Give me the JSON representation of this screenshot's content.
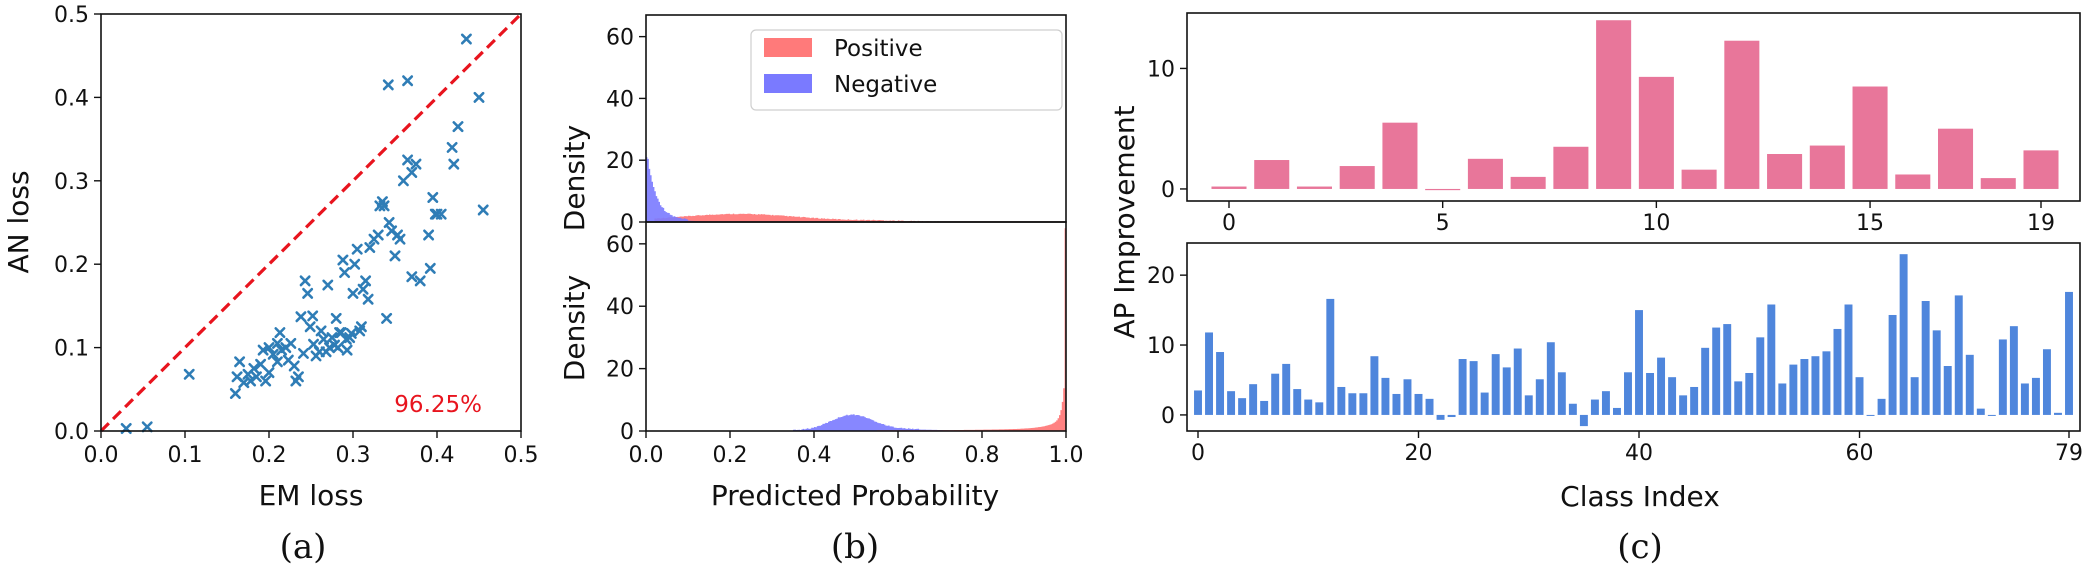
{
  "colors": {
    "scatter": "#2f7db6",
    "diagonal": "#e8141e",
    "positive": "#ff7a7a",
    "negative": "#7a7aff",
    "bars_top": "#e8769a",
    "bars_bottom": "#4f86dc",
    "annotation": "#e8141e"
  },
  "chart_data": [
    {
      "type": "scatter",
      "caption": "(a)",
      "xlabel": "EM loss",
      "ylabel": "AN loss",
      "xlim": [
        0,
        0.5
      ],
      "ylim": [
        0,
        0.5
      ],
      "xticks": [
        "0.0",
        "0.1",
        "0.2",
        "0.3",
        "0.4",
        "0.5"
      ],
      "yticks": [
        "0.0",
        "0.1",
        "0.2",
        "0.3",
        "0.4",
        "0.5"
      ],
      "annotation": "96.25%",
      "reference_line": "y = x (dashed)",
      "points": [
        [
          0.03,
          0.003
        ],
        [
          0.055,
          0.005
        ],
        [
          0.105,
          0.068
        ],
        [
          0.16,
          0.045
        ],
        [
          0.162,
          0.065
        ],
        [
          0.165,
          0.083
        ],
        [
          0.17,
          0.058
        ],
        [
          0.175,
          0.068
        ],
        [
          0.178,
          0.06
        ],
        [
          0.182,
          0.075
        ],
        [
          0.185,
          0.065
        ],
        [
          0.19,
          0.08
        ],
        [
          0.193,
          0.097
        ],
        [
          0.196,
          0.06
        ],
        [
          0.2,
          0.07
        ],
        [
          0.2,
          0.1
        ],
        [
          0.205,
          0.092
        ],
        [
          0.21,
          0.105
        ],
        [
          0.21,
          0.083
        ],
        [
          0.213,
          0.118
        ],
        [
          0.215,
          0.097
        ],
        [
          0.22,
          0.1
        ],
        [
          0.223,
          0.085
        ],
        [
          0.226,
          0.105
        ],
        [
          0.23,
          0.078
        ],
        [
          0.232,
          0.06
        ],
        [
          0.235,
          0.065
        ],
        [
          0.238,
          0.137
        ],
        [
          0.241,
          0.093
        ],
        [
          0.243,
          0.18
        ],
        [
          0.246,
          0.165
        ],
        [
          0.249,
          0.125
        ],
        [
          0.252,
          0.138
        ],
        [
          0.253,
          0.104
        ],
        [
          0.256,
          0.09
        ],
        [
          0.26,
          0.095
        ],
        [
          0.262,
          0.12
        ],
        [
          0.265,
          0.11
        ],
        [
          0.268,
          0.095
        ],
        [
          0.27,
          0.175
        ],
        [
          0.272,
          0.1
        ],
        [
          0.275,
          0.112
        ],
        [
          0.278,
          0.103
        ],
        [
          0.28,
          0.135
        ],
        [
          0.282,
          0.1
        ],
        [
          0.284,
          0.118
        ],
        [
          0.286,
          0.118
        ],
        [
          0.288,
          0.205
        ],
        [
          0.29,
          0.19
        ],
        [
          0.292,
          0.11
        ],
        [
          0.293,
          0.097
        ],
        [
          0.296,
          0.112
        ],
        [
          0.298,
          0.117
        ],
        [
          0.3,
          0.165
        ],
        [
          0.302,
          0.2
        ],
        [
          0.305,
          0.218
        ],
        [
          0.308,
          0.12
        ],
        [
          0.31,
          0.125
        ],
        [
          0.312,
          0.17
        ],
        [
          0.315,
          0.18
        ],
        [
          0.318,
          0.158
        ],
        [
          0.32,
          0.22
        ],
        [
          0.325,
          0.23
        ],
        [
          0.33,
          0.235
        ],
        [
          0.332,
          0.27
        ],
        [
          0.335,
          0.275
        ],
        [
          0.337,
          0.27
        ],
        [
          0.34,
          0.135
        ],
        [
          0.342,
          0.415
        ],
        [
          0.343,
          0.25
        ],
        [
          0.346,
          0.24
        ],
        [
          0.35,
          0.21
        ],
        [
          0.353,
          0.235
        ],
        [
          0.356,
          0.23
        ],
        [
          0.36,
          0.3
        ],
        [
          0.365,
          0.42
        ],
        [
          0.365,
          0.325
        ],
        [
          0.37,
          0.31
        ],
        [
          0.37,
          0.185
        ],
        [
          0.375,
          0.32
        ],
        [
          0.38,
          0.18
        ],
        [
          0.39,
          0.235
        ],
        [
          0.392,
          0.195
        ],
        [
          0.395,
          0.28
        ],
        [
          0.398,
          0.26
        ],
        [
          0.4,
          0.26
        ],
        [
          0.405,
          0.26
        ],
        [
          0.418,
          0.34
        ],
        [
          0.42,
          0.32
        ],
        [
          0.425,
          0.365
        ],
        [
          0.435,
          0.47
        ],
        [
          0.45,
          0.4
        ],
        [
          0.455,
          0.265
        ]
      ]
    },
    {
      "type": "histogram",
      "caption": "(b)",
      "xlabel": "Predicted Probability",
      "ylabel": "Density",
      "xlim": [
        0,
        1
      ],
      "ylim": [
        0,
        67
      ],
      "xticks": [
        "0.0",
        "0.2",
        "0.4",
        "0.6",
        "0.8",
        "1.0"
      ],
      "yticks": [
        "0",
        "20",
        "40",
        "60"
      ],
      "legend": {
        "position": "top-center",
        "entries": [
          "Positive",
          "Negative"
        ]
      },
      "panels": [
        {
          "name": "top",
          "negative": "sharp peak ≈24 near 0.0, decaying by 0.1",
          "positive": "low spread ≈2 from 0.05 to 0.5"
        },
        {
          "name": "bottom",
          "negative": "hump ≈5 centered at 0.5 (0.35–0.65)",
          "positive": "rising toward 1.0, spike ≈65 at 1.0"
        }
      ]
    },
    {
      "type": "bar",
      "caption": "(c)",
      "xlabel": "Class Index",
      "ylabel": "AP Improvement",
      "series": [
        {
          "name": "top",
          "categories": [
            0,
            1,
            2,
            3,
            4,
            5,
            6,
            7,
            8,
            9,
            10,
            11,
            12,
            13,
            14,
            15,
            16,
            17,
            18,
            19
          ],
          "values": [
            0.2,
            2.4,
            0.2,
            1.9,
            5.5,
            -0.1,
            2.5,
            1.0,
            3.5,
            14.0,
            9.3,
            1.6,
            12.3,
            2.9,
            3.6,
            8.5,
            1.2,
            5.0,
            0.9,
            3.2
          ],
          "xticks": [
            "0",
            "5",
            "10",
            "15",
            "19"
          ],
          "yticks": [
            "0",
            "10"
          ],
          "ylim": [
            -1,
            14.6
          ]
        },
        {
          "name": "bottom",
          "categories": "0-79",
          "values": [
            3.5,
            11.8,
            9.0,
            3.4,
            2.4,
            4.4,
            2.0,
            5.9,
            7.3,
            3.7,
            2.2,
            1.8,
            16.6,
            4.0,
            3.1,
            3.1,
            8.4,
            5.3,
            3.0,
            5.1,
            3.0,
            2.3,
            -0.7,
            -0.3,
            8.0,
            7.7,
            3.2,
            8.7,
            6.8,
            9.5,
            2.8,
            5.1,
            10.4,
            6.1,
            1.6,
            -1.6,
            2.2,
            3.4,
            1.0,
            6.1,
            15.0,
            6.0,
            8.2,
            5.4,
            2.8,
            4.0,
            9.6,
            12.5,
            13.0,
            4.8,
            6.0,
            11.1,
            15.8,
            4.5,
            7.2,
            8.0,
            8.4,
            9.1,
            12.3,
            15.8,
            5.4,
            -0.1,
            2.3,
            14.3,
            23.0,
            5.4,
            16.3,
            12.1,
            7.0,
            17.1,
            8.6,
            0.9,
            -0.1,
            10.8,
            12.7,
            4.5,
            5.3,
            9.4,
            0.3,
            17.6
          ],
          "xticks": [
            "0",
            "20",
            "40",
            "60",
            "79"
          ],
          "yticks": [
            "0",
            "10",
            "20"
          ],
          "ylim": [
            -2.3,
            24.6
          ]
        }
      ]
    }
  ]
}
